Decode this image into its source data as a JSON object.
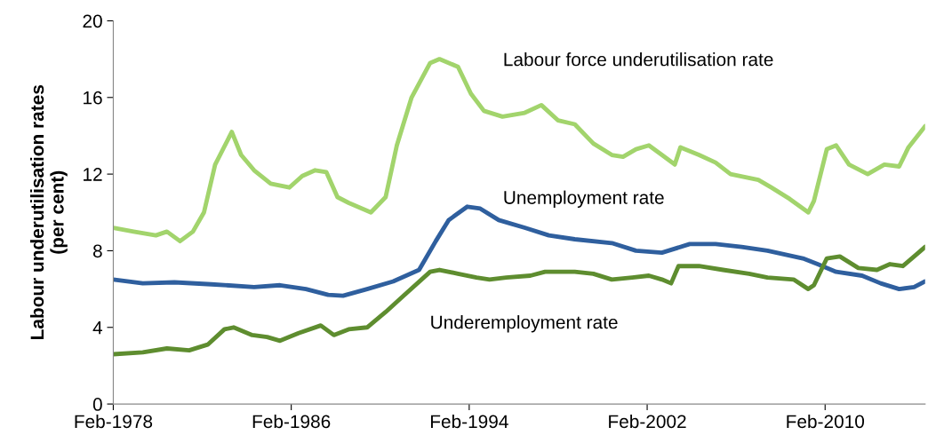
{
  "chart_data": {
    "type": "line",
    "ylabel": "Labour underutilisation rates\n(per cent)",
    "xlim": [
      "1978-02",
      "2014-08"
    ],
    "ylim": [
      0,
      20
    ],
    "yticks": [
      0,
      4,
      8,
      12,
      16,
      20
    ],
    "xticks": [
      {
        "value": "1978-02",
        "label": "Feb-1978"
      },
      {
        "value": "1986-02",
        "label": "Feb-1986"
      },
      {
        "value": "1994-02",
        "label": "Feb-1994"
      },
      {
        "value": "2002-02",
        "label": "Feb-2002"
      },
      {
        "value": "2010-02",
        "label": "Feb-2010"
      }
    ],
    "grid": false,
    "marker": "none",
    "line_style": "solid",
    "series": [
      {
        "name": "Labour force underutilisation rate",
        "color": "#a2d46c",
        "x": [
          "1978-02",
          "1979-01",
          "1980-01",
          "1980-07",
          "1981-02",
          "1981-09",
          "1982-03",
          "1982-09",
          "1983-06",
          "1983-11",
          "1984-06",
          "1985-03",
          "1986-01",
          "1986-08",
          "1987-03",
          "1987-09",
          "1988-03",
          "1988-09",
          "1989-09",
          "1990-05",
          "1990-11",
          "1991-07",
          "1992-05",
          "1992-10",
          "1993-08",
          "1994-03",
          "1994-10",
          "1995-08",
          "1996-08",
          "1997-05",
          "1998-02",
          "1998-11",
          "1999-09",
          "2000-07",
          "2001-01",
          "2001-08",
          "2002-03",
          "2002-10",
          "2003-05",
          "2003-08",
          "2004-06",
          "2005-03",
          "2005-11",
          "2007-02",
          "2007-09",
          "2008-07",
          "2009-05",
          "2009-08",
          "2010-03",
          "2010-08",
          "2011-03",
          "2012-01",
          "2012-10",
          "2013-06",
          "2013-11",
          "2014-08"
        ],
        "values": [
          9.2,
          9.0,
          8.8,
          9.0,
          8.5,
          9.0,
          10.0,
          12.5,
          14.2,
          13.0,
          12.2,
          11.5,
          11.3,
          11.9,
          12.2,
          12.1,
          10.8,
          10.5,
          10.0,
          10.8,
          13.5,
          16.0,
          17.8,
          18.0,
          17.6,
          16.2,
          15.3,
          15.0,
          15.2,
          15.6,
          14.8,
          14.6,
          13.6,
          13.0,
          12.9,
          13.3,
          13.5,
          13.0,
          12.5,
          13.4,
          13.0,
          12.6,
          12.0,
          11.7,
          11.3,
          10.7,
          10.0,
          10.6,
          13.3,
          13.5,
          12.5,
          12.0,
          12.5,
          12.4,
          13.4,
          14.5
        ]
      },
      {
        "name": "Unemployment rate",
        "color": "#2f5f9e",
        "x": [
          "1978-02",
          "1979-06",
          "1980-11",
          "1982-07",
          "1984-06",
          "1985-08",
          "1986-10",
          "1987-10",
          "1988-06",
          "1989-07",
          "1990-09",
          "1991-11",
          "1992-08",
          "1993-03",
          "1994-01",
          "1994-08",
          "1995-06",
          "1996-08",
          "1997-09",
          "1998-11",
          "2000-07",
          "2001-08",
          "2002-10",
          "2004-01",
          "2005-03",
          "2006-05",
          "2007-07",
          "2009-02",
          "2009-10",
          "2010-08",
          "2011-10",
          "2012-08",
          "2013-06",
          "2014-02",
          "2014-08"
        ],
        "values": [
          6.5,
          6.3,
          6.35,
          6.25,
          6.1,
          6.2,
          6.0,
          5.7,
          5.65,
          6.0,
          6.4,
          7.0,
          8.5,
          9.6,
          10.3,
          10.2,
          9.6,
          9.2,
          8.8,
          8.6,
          8.4,
          8.0,
          7.9,
          8.35,
          8.35,
          8.2,
          8.0,
          7.6,
          7.3,
          6.9,
          6.7,
          6.3,
          6.0,
          6.1,
          6.4
        ]
      },
      {
        "name": "Underemployment rate",
        "color": "#5e8d2f",
        "x": [
          "1978-02",
          "1979-06",
          "1980-07",
          "1981-07",
          "1982-05",
          "1983-02",
          "1983-07",
          "1984-05",
          "1985-01",
          "1985-08",
          "1986-06",
          "1987-06",
          "1988-01",
          "1988-09",
          "1989-07",
          "1990-05",
          "1991-02",
          "1992-05",
          "1992-10",
          "1993-08",
          "1994-06",
          "1995-01",
          "1995-10",
          "1996-11",
          "1997-07",
          "1998-11",
          "1999-09",
          "2000-07",
          "2001-06",
          "2002-03",
          "2002-10",
          "2003-03",
          "2003-07",
          "2004-06",
          "2005-07",
          "2006-09",
          "2007-07",
          "2008-09",
          "2009-05",
          "2009-08",
          "2010-03",
          "2010-10",
          "2011-08",
          "2012-06",
          "2013-01",
          "2013-08",
          "2014-02",
          "2014-08"
        ],
        "values": [
          2.6,
          2.7,
          2.9,
          2.8,
          3.1,
          3.9,
          4.0,
          3.6,
          3.5,
          3.3,
          3.7,
          4.1,
          3.6,
          3.9,
          4.0,
          4.8,
          5.6,
          6.9,
          7.0,
          6.8,
          6.6,
          6.5,
          6.6,
          6.7,
          6.9,
          6.9,
          6.8,
          6.5,
          6.6,
          6.7,
          6.5,
          6.3,
          7.2,
          7.2,
          7.0,
          6.8,
          6.6,
          6.5,
          6.0,
          6.2,
          7.6,
          7.7,
          7.1,
          7.0,
          7.3,
          7.2,
          7.7,
          8.2
        ]
      }
    ]
  }
}
